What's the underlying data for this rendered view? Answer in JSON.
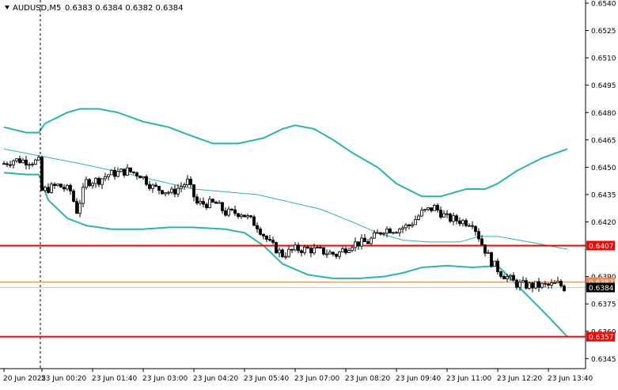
{
  "header": {
    "symbol": "AUDUSD,M5",
    "ohlc": "0.6383 0.6384 0.6382 0.6384",
    "arrow": "triangle-down-icon"
  },
  "chart_data": {
    "type": "candlestick",
    "symbol": "AUDUSD",
    "timeframe": "M5",
    "ylim": [
      0.63395,
      0.654
    ],
    "y_ticks": [
      "0.6540",
      "0.6525",
      "0.6510",
      "0.6495",
      "0.6480",
      "0.6465",
      "0.6450",
      "0.6435",
      "0.6420",
      "0.6390",
      "0.6375",
      "0.6360",
      "0.6345"
    ],
    "x_ticks": [
      "20 Jun 2025",
      "23 Jun 00:20",
      "23 Jun 01:40",
      "23 Jun 03:00",
      "23 Jun 04:20",
      "23 Jun 05:40",
      "23 Jun 07:00",
      "23 Jun 08:20",
      "23 Jun 09:40",
      "23 Jun 11:00",
      "23 Jun 12:20",
      "23 Jun 13:40"
    ],
    "x_tick_bar_index": [
      0,
      12,
      28,
      44,
      60,
      76,
      92,
      108,
      124,
      140,
      156,
      172
    ],
    "session_separator_bar_index": 11.5,
    "bar_count": 180,
    "price_anchors": [
      [
        0,
        0.6452
      ],
      [
        3,
        0.6454
      ],
      [
        11,
        0.6453
      ],
      [
        12,
        0.6437
      ],
      [
        17,
        0.644
      ],
      [
        21,
        0.6437
      ],
      [
        23,
        0.6426
      ],
      [
        26,
        0.6442
      ],
      [
        30,
        0.6443
      ],
      [
        33,
        0.6446
      ],
      [
        39,
        0.6448
      ],
      [
        43,
        0.6446
      ],
      [
        47,
        0.6439
      ],
      [
        53,
        0.6436
      ],
      [
        58,
        0.6442
      ],
      [
        61,
        0.643
      ],
      [
        65,
        0.643
      ],
      [
        67,
        0.643
      ],
      [
        70,
        0.6425
      ],
      [
        75,
        0.6425
      ],
      [
        80,
        0.6418
      ],
      [
        84,
        0.6408
      ],
      [
        88,
        0.6402
      ],
      [
        92,
        0.6405
      ],
      [
        96,
        0.6405
      ],
      [
        100,
        0.6404
      ],
      [
        105,
        0.6402
      ],
      [
        110,
        0.6408
      ],
      [
        115,
        0.6409
      ],
      [
        120,
        0.6416
      ],
      [
        124,
        0.6416
      ],
      [
        128,
        0.6418
      ],
      [
        132,
        0.6425
      ],
      [
        136,
        0.6428
      ],
      [
        140,
        0.6422
      ],
      [
        146,
        0.642
      ],
      [
        148,
        0.642
      ],
      [
        151,
        0.6408
      ],
      [
        154,
        0.6398
      ],
      [
        157,
        0.6392
      ],
      [
        162,
        0.6386
      ],
      [
        166,
        0.6385
      ],
      [
        172,
        0.6385
      ],
      [
        175,
        0.6386
      ],
      [
        177,
        0.6384
      ]
    ],
    "bollinger": {
      "period": 20,
      "upper": [
        [
          0,
          0.6472
        ],
        [
          7,
          0.6469
        ],
        [
          11,
          0.6469
        ],
        [
          13,
          0.6474
        ],
        [
          20,
          0.648
        ],
        [
          24,
          0.6482
        ],
        [
          30,
          0.6482
        ],
        [
          36,
          0.648
        ],
        [
          44,
          0.6475
        ],
        [
          52,
          0.6472
        ],
        [
          58,
          0.6468
        ],
        [
          66,
          0.6463
        ],
        [
          74,
          0.6463
        ],
        [
          82,
          0.6466
        ],
        [
          88,
          0.6471
        ],
        [
          92,
          0.6473
        ],
        [
          98,
          0.6471
        ],
        [
          104,
          0.6465
        ],
        [
          110,
          0.6458
        ],
        [
          118,
          0.645
        ],
        [
          124,
          0.6441
        ],
        [
          132,
          0.6434
        ],
        [
          138,
          0.6434
        ],
        [
          146,
          0.6438
        ],
        [
          152,
          0.6438
        ],
        [
          156,
          0.6441
        ],
        [
          162,
          0.6448
        ],
        [
          170,
          0.6455
        ],
        [
          178,
          0.646
        ]
      ],
      "middle": [
        [
          0,
          0.646
        ],
        [
          12,
          0.6456
        ],
        [
          24,
          0.6452
        ],
        [
          40,
          0.6446
        ],
        [
          60,
          0.6438
        ],
        [
          80,
          0.6435
        ],
        [
          100,
          0.6427
        ],
        [
          110,
          0.642
        ],
        [
          118,
          0.6414
        ],
        [
          126,
          0.641
        ],
        [
          134,
          0.6409
        ],
        [
          144,
          0.6409
        ],
        [
          150,
          0.6412
        ],
        [
          156,
          0.6412
        ],
        [
          166,
          0.6409
        ],
        [
          178,
          0.6405
        ]
      ],
      "lower": [
        [
          0,
          0.6447
        ],
        [
          7,
          0.6446
        ],
        [
          11,
          0.6446
        ],
        [
          14,
          0.6432
        ],
        [
          20,
          0.6422
        ],
        [
          26,
          0.6418
        ],
        [
          34,
          0.6416
        ],
        [
          44,
          0.6416
        ],
        [
          52,
          0.6417
        ],
        [
          60,
          0.6417
        ],
        [
          70,
          0.6416
        ],
        [
          76,
          0.6414
        ],
        [
          82,
          0.6407
        ],
        [
          88,
          0.6397
        ],
        [
          96,
          0.6391
        ],
        [
          104,
          0.6389
        ],
        [
          112,
          0.6389
        ],
        [
          120,
          0.639
        ],
        [
          126,
          0.6392
        ],
        [
          132,
          0.6395
        ],
        [
          140,
          0.6396
        ],
        [
          148,
          0.6395
        ],
        [
          156,
          0.6396
        ],
        [
          164,
          0.6382
        ],
        [
          172,
          0.6368
        ],
        [
          178,
          0.6357
        ]
      ]
    },
    "levels": [
      {
        "price": 0.6407,
        "label": "0.6407",
        "color": "#ff0000",
        "width": 2
      },
      {
        "price": 0.6357,
        "label": "0.6357",
        "color": "#ff0000",
        "width": 2
      },
      {
        "price": 0.6387,
        "label": "0.6387",
        "color": "#ef8c53",
        "width": 1
      },
      {
        "price": 0.6384,
        "label": "0.6384",
        "color": "#cfcfcf",
        "width": 1,
        "tag_bg": "#000000"
      }
    ],
    "grid": false
  },
  "colors": {
    "background": "#ffffff",
    "candles": "#000000",
    "bands": "#2ab5aa",
    "axis_text": "#000000",
    "level_red": "#ff0000",
    "level_orange": "#ef8c53"
  }
}
